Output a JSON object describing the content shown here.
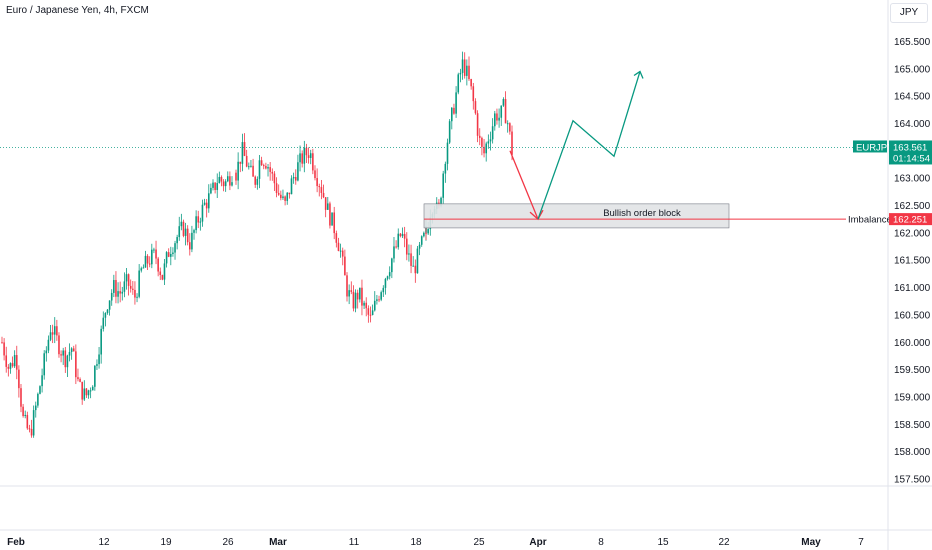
{
  "header": {
    "title": "Euro / Japanese Yen, 4h, FXCM",
    "currency": "JPY"
  },
  "chart_data": {
    "type": "candlestick",
    "title": "Euro / Japanese Yen, 4h, FXCM",
    "ylim": [
      157.3,
      165.8
    ],
    "y_ticks": [
      "157.500",
      "158.000",
      "158.500",
      "159.000",
      "159.500",
      "160.000",
      "160.500",
      "161.000",
      "161.500",
      "162.000",
      "162.500",
      "163.000",
      "163.500",
      "164.000",
      "164.500",
      "165.000",
      "165.500"
    ],
    "x_ticks": [
      "Feb",
      "12",
      "19",
      "26",
      "Mar",
      "11",
      "18",
      "25",
      "Apr",
      "8",
      "15",
      "22",
      "May",
      "7"
    ],
    "bold_x_ticks": [
      "Feb",
      "Mar",
      "Apr",
      "May"
    ],
    "grid": false,
    "current_price": {
      "symbol": "EURJPY",
      "value": "163.561",
      "countdown": "01:14:54"
    },
    "imbalance": {
      "label": "Imbalance",
      "value": "162.251"
    },
    "order_block": {
      "label": "Bullish order block",
      "top": 162.53,
      "bottom": 162.09
    },
    "projection": {
      "down": [
        [
          "Mar 28",
          163.5
        ],
        [
          "Apr 1",
          162.25
        ]
      ],
      "up": [
        [
          "Apr 1",
          162.25
        ],
        [
          "Apr 4",
          164.05
        ],
        [
          "Apr 10",
          163.4
        ],
        [
          "Apr 13",
          164.95
        ]
      ]
    },
    "colors": {
      "up": "#089981",
      "down": "#f23645",
      "price_line": "#089981",
      "imbalance": "#f23645",
      "projection_up": "#089981",
      "projection_down": "#f23645"
    },
    "series": [
      {
        "name": "EURJPY",
        "segments": [
          [
            160.0,
            159.5,
            159.8,
            158.6,
            158.3,
            158.9,
            159.6,
            160.3,
            160.0,
            159.7,
            159.9,
            159.2,
            159.0,
            159.3,
            160.0,
            160.7,
            161.0,
            160.9,
            161.1,
            160.8,
            161.3,
            161.5,
            161.6,
            161.2,
            161.7,
            161.9,
            162.1,
            161.8,
            162.2,
            162.5,
            162.7,
            163.0,
            162.9,
            163.1
          ],
          [
            163.1,
            163.5,
            163.2,
            162.9,
            163.4,
            163.3,
            163.0,
            162.7,
            162.5,
            162.9,
            163.2,
            163.4,
            163.5,
            163.1,
            162.8,
            162.4,
            162.1,
            161.7,
            161.0,
            160.7,
            160.9,
            160.6,
            160.4,
            160.8,
            161.1,
            161.4,
            161.7,
            162.0,
            161.6,
            161.3,
            161.7,
            162.0
          ],
          [
            162.0,
            162.4,
            162.6,
            162.3,
            163.0,
            163.6,
            164.0,
            164.4,
            164.8,
            165.1,
            164.9,
            164.6,
            164.2,
            163.7,
            163.4,
            163.7,
            163.9,
            164.2,
            164.1,
            164.3,
            164.0,
            163.5
          ]
        ]
      }
    ]
  }
}
